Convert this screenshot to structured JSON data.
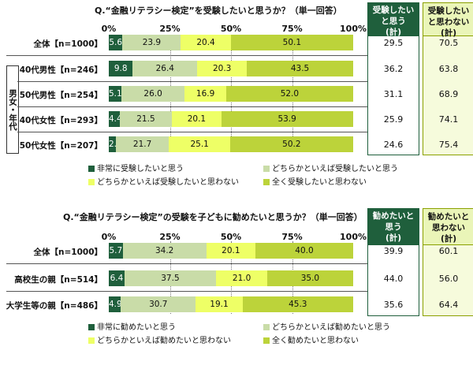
{
  "colors": {
    "c0": "#1f5f3c",
    "c1": "#c9dca8",
    "c2": "#eeff66",
    "c3": "#bcd33a"
  },
  "chart_data": [
    {
      "type": "bar",
      "stacked": true,
      "orientation": "horizontal",
      "title": "Q.“金融リテラシー検定”を受験したいと思うか？（単一回答）",
      "xticks": [
        "0%",
        "25%",
        "50%",
        "75%",
        "100%"
      ],
      "xlim": [
        0,
        100
      ],
      "categories": [
        "全体【n=1000】",
        "40代男性【n=246】",
        "50代男性【n=254】",
        "40代女性【n=293】",
        "50代女性【n=207】"
      ],
      "group_label": "男女・年代",
      "series": [
        {
          "name": "非常に受験したいと思う",
          "values": [
            5.6,
            9.8,
            5.1,
            4.4,
            2.9
          ]
        },
        {
          "name": "どちらかといえば受験したいと思う",
          "values": [
            23.9,
            26.4,
            26.0,
            21.5,
            21.7
          ]
        },
        {
          "name": "どちらかといえば受験したいと思わない",
          "values": [
            20.4,
            20.3,
            16.9,
            20.1,
            25.1
          ]
        },
        {
          "name": "全く受験したいと思わない",
          "values": [
            50.1,
            43.5,
            52.0,
            53.9,
            50.2
          ]
        }
      ],
      "totals": [
        {
          "header": "受験したい\nと思う\n(計)",
          "values": [
            "29.5",
            "36.2",
            "31.1",
            "25.9",
            "24.6"
          ]
        },
        {
          "header": "受験したい\nと思わない\n(計)",
          "values": [
            "70.5",
            "63.8",
            "68.9",
            "74.1",
            "75.4"
          ]
        }
      ]
    },
    {
      "type": "bar",
      "stacked": true,
      "orientation": "horizontal",
      "title": "Q.“金融リテラシー検定”の受験を子どもに勧めたいと思うか？（単一回答）",
      "xticks": [
        "0%",
        "25%",
        "50%",
        "75%",
        "100%"
      ],
      "xlim": [
        0,
        100
      ],
      "categories": [
        "全体【n=1000】",
        "高校生の親【n=514】",
        "大学生等の親【n=486】"
      ],
      "series": [
        {
          "name": "非常に勧めたいと思う",
          "values": [
            5.7,
            6.4,
            4.9
          ]
        },
        {
          "name": "どちらかといえば勧めたいと思う",
          "values": [
            34.2,
            37.5,
            30.7
          ]
        },
        {
          "name": "どちらかといえば勧めたいと思わない",
          "values": [
            20.1,
            21.0,
            19.1
          ]
        },
        {
          "name": "全く勧めたいと思わない",
          "values": [
            40.0,
            35.0,
            45.3
          ]
        }
      ],
      "totals": [
        {
          "header": "勧めたいと\n思う\n(計)",
          "values": [
            "39.9",
            "44.0",
            "35.6"
          ]
        },
        {
          "header": "勧めたいと\n思わない\n(計)",
          "values": [
            "60.1",
            "56.0",
            "64.4"
          ]
        }
      ]
    }
  ]
}
